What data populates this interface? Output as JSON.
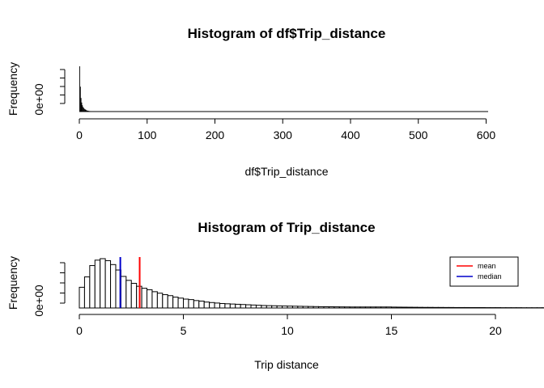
{
  "chart_data": [
    {
      "type": "bar",
      "title": "Histogram of df$Trip_distance",
      "xlabel": "df$Trip_distance",
      "ylabel": "Frequency",
      "xlim": [
        0,
        603
      ],
      "x_ticks": [
        "0",
        "100",
        "200",
        "300",
        "400",
        "500",
        "600"
      ],
      "y_ticks": [
        "0e+00"
      ],
      "y_tick_count": 5,
      "bin_width": 1,
      "bins_x": [
        0,
        1,
        2,
        3,
        4,
        5,
        6,
        7,
        8,
        9,
        10,
        11,
        12,
        13,
        14,
        15,
        16,
        17,
        18,
        19,
        20
      ],
      "values": [
        1.0,
        0.55,
        0.3,
        0.2,
        0.14,
        0.1,
        0.08,
        0.06,
        0.05,
        0.04,
        0.03,
        0.02,
        0.02,
        0.015,
        0.012,
        0.01,
        0.008,
        0.006,
        0.005,
        0.004,
        0.003
      ],
      "values_note": "relative frequency (fraction of tallest bar)"
    },
    {
      "type": "bar",
      "title": "Histogram of Trip_distance",
      "xlabel": "Trip distance",
      "ylabel": "Frequency",
      "xlim": [
        0,
        20
      ],
      "x_ticks": [
        "0",
        "5",
        "10",
        "15",
        "20"
      ],
      "y_ticks": [
        "0e+00"
      ],
      "y_tick_count": 5,
      "bin_width": 0.25,
      "values": [
        0.42,
        0.63,
        0.86,
        0.97,
        1.0,
        0.96,
        0.88,
        0.77,
        0.64,
        0.56,
        0.5,
        0.44,
        0.4,
        0.37,
        0.33,
        0.3,
        0.27,
        0.25,
        0.22,
        0.2,
        0.18,
        0.17,
        0.15,
        0.14,
        0.12,
        0.11,
        0.1,
        0.09,
        0.085,
        0.08,
        0.075,
        0.07,
        0.065,
        0.06,
        0.055,
        0.05,
        0.047,
        0.045,
        0.042,
        0.04,
        0.038,
        0.036,
        0.034,
        0.032,
        0.03,
        0.028,
        0.026,
        0.025,
        0.024,
        0.023,
        0.022,
        0.021,
        0.02,
        0.02,
        0.02,
        0.02,
        0.02,
        0.02,
        0.02,
        0.02,
        0.018,
        0.017,
        0.016,
        0.015,
        0.014,
        0.013,
        0.012,
        0.012,
        0.011,
        0.011,
        0.01,
        0.01,
        0.009,
        0.009,
        0.009,
        0.008,
        0.008,
        0.008,
        0.007,
        0.007,
        0.007,
        0.006,
        0.006,
        0.006,
        0.006,
        0.005,
        0.005,
        0.005,
        0.005,
        0.005,
        0.005,
        0.005,
        0.005,
        0.005,
        0.005,
        0.005,
        0.005,
        0.005,
        0.005,
        0.004,
        0.004,
        0.004
      ],
      "values_note": "relative frequency (fraction of tallest bar)",
      "vlines": [
        {
          "name": "mean",
          "x": 2.9,
          "color": "#ff0000"
        },
        {
          "name": "median",
          "x": 1.97,
          "color": "#0000cc"
        }
      ],
      "legend": {
        "position": "right",
        "entries": [
          {
            "label": "mean",
            "color": "#ff0000"
          },
          {
            "label": "median",
            "color": "#0000cc"
          }
        ]
      }
    }
  ]
}
